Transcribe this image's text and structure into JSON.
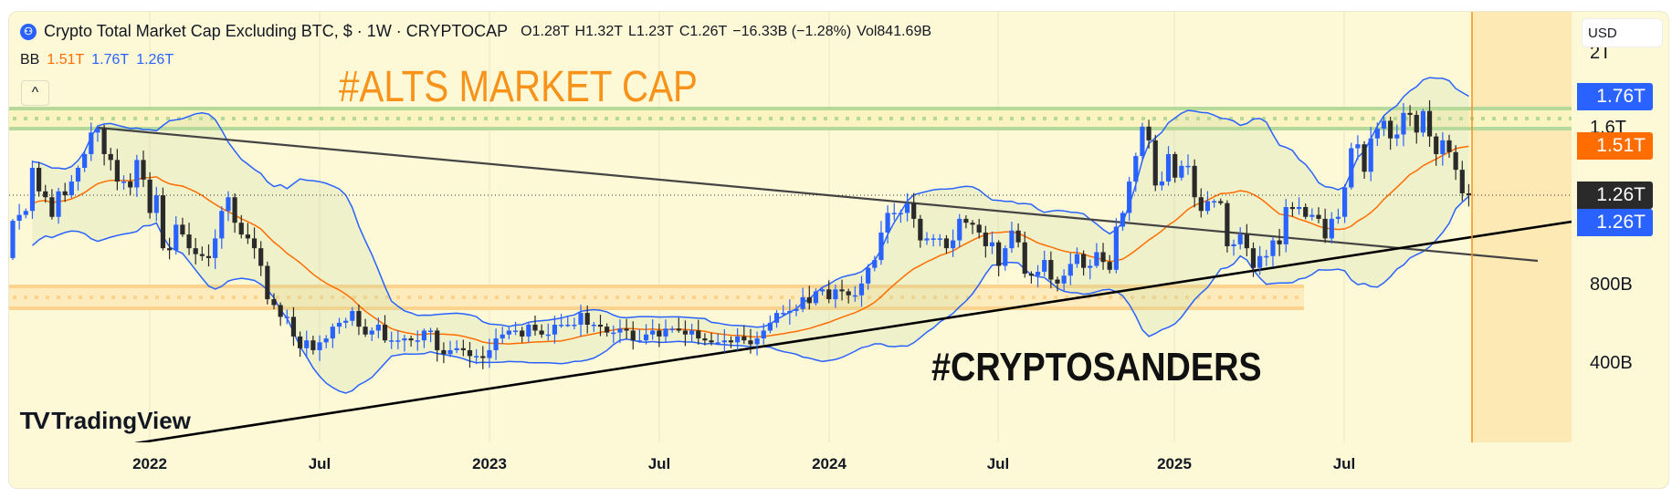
{
  "header": {
    "title": "Crypto Total Market Cap Excluding BTC, $ · 1W · CRYPTOCAP",
    "open": "O1.28T",
    "high": "H1.32T",
    "low": "L1.23T",
    "close": "C1.26T",
    "change": "−16.33B (−1.28%)",
    "volume": "Vol841.69B"
  },
  "indicator": {
    "name": "BB",
    "basis": "1.51T",
    "upper": "1.76T",
    "lower": "1.26T"
  },
  "annotations": {
    "title_text": "#ALTS MARKET CAP",
    "author_text": "#CRYPTOSANDERS"
  },
  "branding": {
    "logo_text": "TradingView",
    "logo_mark": "TV"
  },
  "collapse_label": "^",
  "currency_label": "USD",
  "price_axis": {
    "labels": [
      "2T",
      "1.6T",
      "800B",
      "400B"
    ],
    "tags": {
      "bb_upper": "1.76T",
      "bb_basis": "1.51T",
      "last_price": "1.26T",
      "bb_lower": "1.26T"
    }
  },
  "colors": {
    "up": "#2962ff",
    "down": "#2a2a2a",
    "bb_basis": "#ff6d00",
    "bb_band": "#2962ff",
    "resistance_zone": "#a8d58a",
    "support_zone": "#fbcf80",
    "title_text": "#f7931a"
  },
  "chart_data": {
    "type": "candlestick",
    "title": "Crypto Total Market Cap Excluding BTC, $ · 1W · CRYPTOCAP",
    "unit": "T USD",
    "interval": "1W",
    "x_ticks": [
      "2022",
      "Jul",
      "2023",
      "Jul",
      "2024",
      "Jul",
      "2025",
      "Jul"
    ],
    "ylim": [
      0,
      2.2
    ],
    "first_open": 0.94,
    "closes": [
      1.13,
      1.16,
      1.18,
      1.4,
      1.28,
      1.25,
      1.15,
      1.28,
      1.26,
      1.33,
      1.4,
      1.47,
      1.58,
      1.6,
      1.47,
      1.44,
      1.33,
      1.33,
      1.3,
      1.44,
      1.34,
      1.17,
      1.26,
      0.99,
      0.98,
      1.11,
      1.06,
      0.99,
      0.96,
      0.95,
      0.94,
      1.04,
      1.18,
      1.25,
      1.12,
      1.06,
      1.04,
      0.99,
      0.9,
      0.73,
      0.7,
      0.64,
      0.64,
      0.54,
      0.48,
      0.52,
      0.47,
      0.51,
      0.53,
      0.59,
      0.61,
      0.62,
      0.67,
      0.59,
      0.55,
      0.57,
      0.6,
      0.52,
      0.52,
      0.52,
      0.53,
      0.52,
      0.52,
      0.57,
      0.57,
      0.47,
      0.45,
      0.47,
      0.48,
      0.47,
      0.44,
      0.44,
      0.43,
      0.47,
      0.53,
      0.55,
      0.57,
      0.57,
      0.54,
      0.6,
      0.57,
      0.55,
      0.55,
      0.6,
      0.6,
      0.6,
      0.6,
      0.66,
      0.6,
      0.6,
      0.59,
      0.56,
      0.56,
      0.58,
      0.57,
      0.52,
      0.52,
      0.55,
      0.57,
      0.54,
      0.58,
      0.58,
      0.57,
      0.55,
      0.57,
      0.53,
      0.52,
      0.51,
      0.51,
      0.52,
      0.51,
      0.54,
      0.52,
      0.5,
      0.53,
      0.57,
      0.61,
      0.66,
      0.66,
      0.67,
      0.68,
      0.74,
      0.71,
      0.77,
      0.78,
      0.73,
      0.78,
      0.77,
      0.75,
      0.75,
      0.81,
      0.89,
      0.93,
      1.07,
      1.17,
      1.17,
      1.17,
      1.22,
      1.14,
      1.03,
      1.04,
      1.04,
      1.04,
      0.99,
      1.03,
      1.14,
      1.12,
      1.11,
      1.07,
      1.0,
      1.02,
      0.9,
      0.99,
      1.08,
      1.02,
      0.86,
      0.85,
      0.87,
      0.93,
      0.83,
      0.81,
      0.85,
      0.91,
      0.96,
      0.89,
      0.9,
      0.97,
      0.92,
      0.88,
      1.1,
      1.17,
      1.33,
      1.46,
      1.61,
      1.54,
      1.31,
      1.33,
      1.47,
      1.35,
      1.41,
      1.41,
      1.25,
      1.18,
      1.23,
      1.23,
      1.22,
      1.0,
      1.01,
      1.06,
      0.99,
      0.89,
      0.95,
      0.95,
      1.03,
      1.01,
      1.2,
      1.19,
      1.2,
      1.15,
      1.16,
      1.14,
      1.04,
      1.14,
      1.15,
      1.3,
      1.5,
      1.52,
      1.38,
      1.55,
      1.6,
      1.64,
      1.55,
      1.57,
      1.68,
      1.67,
      1.58,
      1.69,
      1.56,
      1.47,
      1.54,
      1.48,
      1.39,
      1.27,
      1.26
    ],
    "bollinger": {
      "period": 20,
      "stddev": 2
    },
    "last_price": 1.26,
    "zones": [
      {
        "name": "resistance",
        "low": 1.61,
        "high": 1.71
      },
      {
        "name": "support",
        "low": 0.68,
        "high": 0.79
      }
    ]
  }
}
